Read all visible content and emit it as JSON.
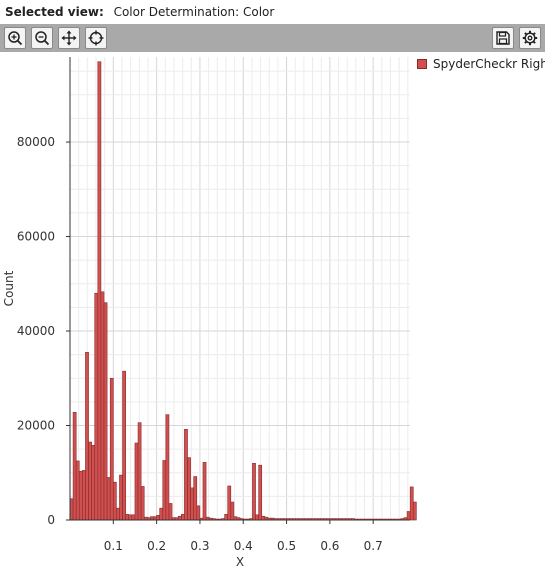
{
  "header": {
    "label": "Selected view:",
    "value": "Color Determination: Color"
  },
  "toolbar": {
    "left_icons": [
      "zoom-in-icon",
      "zoom-out-icon",
      "pan-icon",
      "crosshair-icon"
    ],
    "right_icons": [
      "save-icon",
      "gear-icon"
    ]
  },
  "chart_data": {
    "type": "bar",
    "title": "",
    "xlabel": "X",
    "ylabel": "Count",
    "xlim": [
      0.0,
      0.785
    ],
    "ylim": [
      0,
      98000
    ],
    "grid": true,
    "legend_position": "top-right",
    "x_ticks": [
      "0.1",
      "0.2",
      "0.3",
      "0.4",
      "0.5",
      "0.6",
      "0.7"
    ],
    "y_ticks": [
      "0",
      "20000",
      "40000",
      "60000",
      "80000"
    ],
    "bar_color": "#d05050",
    "bar_edge_color": "#8a2b2b",
    "series": [
      {
        "name": "SpyderCheckr Right",
        "bin_start": 0.0,
        "bin_width": 0.00714,
        "values": [
          4500,
          22800,
          12500,
          10300,
          10500,
          35500,
          16500,
          15800,
          48000,
          97000,
          48300,
          46000,
          9000,
          30000,
          8000,
          2500,
          9500,
          31500,
          1200,
          1100,
          1100,
          16300,
          20600,
          7100,
          600,
          500,
          700,
          700,
          1000,
          2500,
          12600,
          22300,
          3500,
          500,
          500,
          800,
          1200,
          19200,
          13200,
          6800,
          9200,
          3000,
          400,
          12200,
          600,
          400,
          300,
          200,
          200,
          300,
          1200,
          7200,
          3800,
          700,
          500,
          300,
          200,
          200,
          300,
          12000,
          1100,
          11600,
          800,
          600,
          400,
          400,
          300,
          300,
          300,
          300,
          300,
          300,
          300,
          300,
          300,
          300,
          300,
          300,
          300,
          300,
          300,
          300,
          300,
          300,
          300,
          300,
          300,
          300,
          300,
          300,
          300,
          300,
          200,
          200,
          200,
          200,
          200,
          200,
          200,
          200,
          200,
          200,
          200,
          200,
          200,
          200,
          200,
          300,
          500,
          1800,
          7000,
          3800
        ]
      }
    ]
  }
}
